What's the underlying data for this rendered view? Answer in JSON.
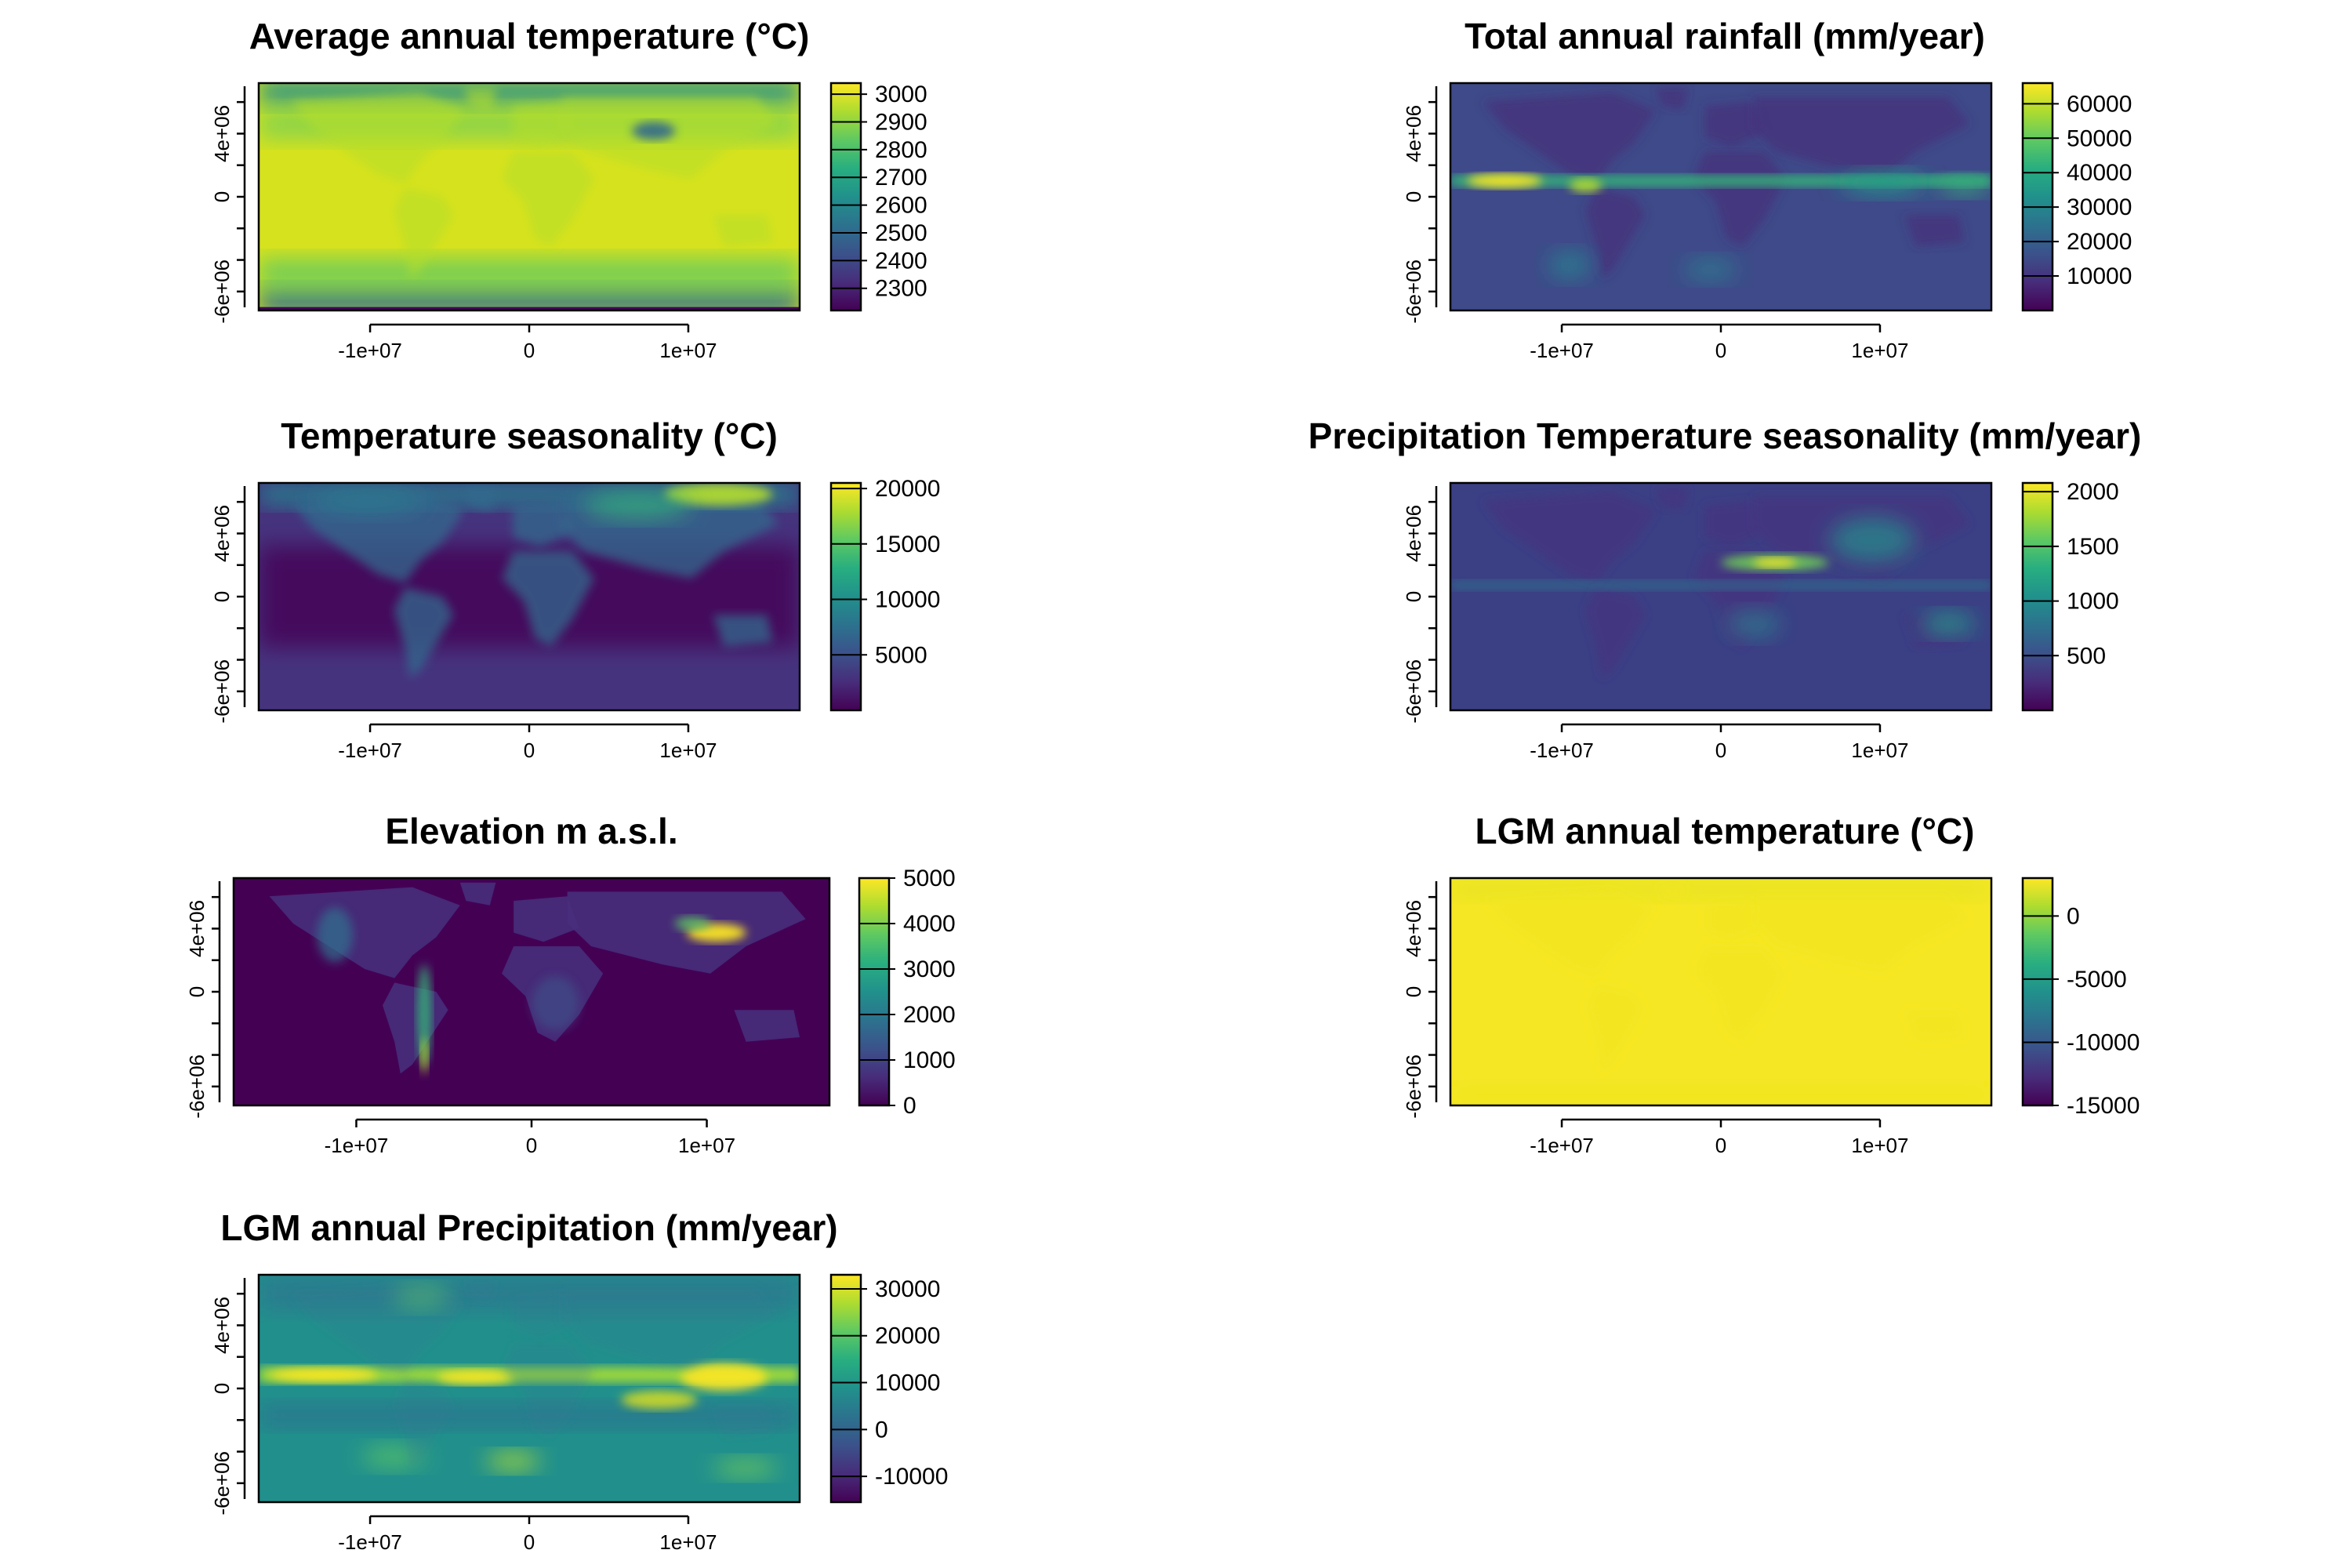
{
  "figure": {
    "panels": [
      {
        "id": "avg-annual-temperature",
        "title": "Average annual temperature (°C)",
        "x_ticks": [
          "-1e+07",
          "0",
          "1e+07"
        ],
        "y_ticks": [
          "-6e+06",
          "0",
          "4e+06"
        ],
        "colorbar": {
          "min": 2220,
          "max": 3040,
          "ticks": [
            {
              "value": 3000,
              "label": "3000"
            },
            {
              "value": 2900,
              "label": "2900"
            },
            {
              "value": 2800,
              "label": "2800"
            },
            {
              "value": 2700,
              "label": "2700"
            },
            {
              "value": 2600,
              "label": "2600"
            },
            {
              "value": 2500,
              "label": "2500"
            },
            {
              "value": 2400,
              "label": "2400"
            },
            {
              "value": 2300,
              "label": "2300"
            }
          ]
        },
        "map_style": "temperature"
      },
      {
        "id": "total-annual-rainfall",
        "title": "Total annual rainfall (mm/year)",
        "x_ticks": [
          "-1e+07",
          "0",
          "1e+07"
        ],
        "y_ticks": [
          "-6e+06",
          "0",
          "4e+06"
        ],
        "colorbar": {
          "min": 0,
          "max": 66000,
          "ticks": [
            {
              "value": 60000,
              "label": "60000"
            },
            {
              "value": 50000,
              "label": "50000"
            },
            {
              "value": 40000,
              "label": "40000"
            },
            {
              "value": 30000,
              "label": "30000"
            },
            {
              "value": 20000,
              "label": "20000"
            },
            {
              "value": 10000,
              "label": "10000"
            }
          ]
        },
        "map_style": "rainfall"
      },
      {
        "id": "temperature-seasonality",
        "title": "Temperature seasonality (°C)",
        "x_ticks": [
          "-1e+07",
          "0",
          "1e+07"
        ],
        "y_ticks": [
          "-6e+06",
          "0",
          "4e+06"
        ],
        "colorbar": {
          "min": 0,
          "max": 20500,
          "ticks": [
            {
              "value": 20000,
              "label": "20000"
            },
            {
              "value": 15000,
              "label": "15000"
            },
            {
              "value": 10000,
              "label": "10000"
            },
            {
              "value": 5000,
              "label": "5000"
            }
          ]
        },
        "map_style": "seasonality"
      },
      {
        "id": "precipitation-seasonality",
        "title": "Precipitation Temperature seasonality (mm/year)",
        "x_ticks": [
          "-1e+07",
          "0",
          "1e+07"
        ],
        "y_ticks": [
          "-6e+06",
          "0",
          "4e+06"
        ],
        "colorbar": {
          "min": 0,
          "max": 2080,
          "ticks": [
            {
              "value": 2000,
              "label": "2000"
            },
            {
              "value": 1500,
              "label": "1500"
            },
            {
              "value": 1000,
              "label": "1000"
            },
            {
              "value": 500,
              "label": "500"
            }
          ]
        },
        "map_style": "precip-seasonality"
      },
      {
        "id": "elevation",
        "title": "Elevation m a.s.l.",
        "x_ticks": [
          "-1e+07",
          "0",
          "1e+07"
        ],
        "y_ticks": [
          "-6e+06",
          "0",
          "4e+06"
        ],
        "colorbar": {
          "min": 0,
          "max": 5000,
          "ticks": [
            {
              "value": 5000,
              "label": "5000"
            },
            {
              "value": 4000,
              "label": "4000"
            },
            {
              "value": 3000,
              "label": "3000"
            },
            {
              "value": 2000,
              "label": "2000"
            },
            {
              "value": 1000,
              "label": "1000"
            },
            {
              "value": 0,
              "label": "0"
            }
          ]
        },
        "map_style": "elevation"
      },
      {
        "id": "lgm-annual-temperature",
        "title": "LGM annual temperature (°C)",
        "x_ticks": [
          "-1e+07",
          "0",
          "1e+07"
        ],
        "y_ticks": [
          "-6e+06",
          "0",
          "4e+06"
        ],
        "colorbar": {
          "min": -15000,
          "max": 3000,
          "ticks": [
            {
              "value": 0,
              "label": "0"
            },
            {
              "value": -5000,
              "label": "-5000"
            },
            {
              "value": -10000,
              "label": "-10000"
            },
            {
              "value": -15000,
              "label": "-15000"
            }
          ]
        },
        "map_style": "lgm-temperature"
      },
      {
        "id": "lgm-annual-precipitation",
        "title": "LGM annual Precipitation (mm/year)",
        "x_ticks": [
          "-1e+07",
          "0",
          "1e+07"
        ],
        "y_ticks": [
          "-6e+06",
          "0",
          "4e+06"
        ],
        "colorbar": {
          "min": -15500,
          "max": 33000,
          "ticks": [
            {
              "value": 30000,
              "label": "30000"
            },
            {
              "value": 20000,
              "label": "20000"
            },
            {
              "value": 10000,
              "label": "10000"
            },
            {
              "value": 0,
              "label": "0"
            },
            {
              "value": -10000,
              "label": "-10000"
            }
          ]
        },
        "map_style": "lgm-precip"
      }
    ]
  }
}
